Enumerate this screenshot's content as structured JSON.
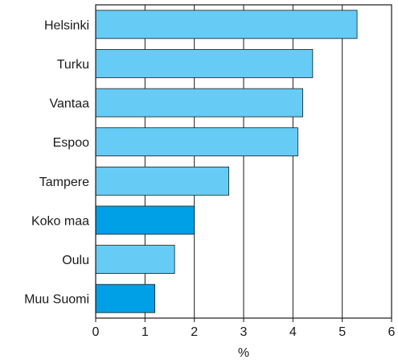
{
  "chart_data": {
    "type": "bar",
    "orientation": "horizontal",
    "categories": [
      "Helsinki",
      "Turku",
      "Vantaa",
      "Espoo",
      "Tampere",
      "Koko maa",
      "Oulu",
      "Muu Suomi"
    ],
    "values": [
      5.3,
      4.4,
      4.2,
      4.1,
      2.7,
      2.0,
      1.6,
      1.2
    ],
    "highlighted": [
      "Koko maa",
      "Muu Suomi"
    ],
    "colors": {
      "default": "#66ccf5",
      "highlight": "#00a0e6"
    },
    "xlabel": "%",
    "ylabel": "",
    "xlim": [
      0,
      6
    ],
    "xticks": [
      "0",
      "1",
      "2",
      "3",
      "4",
      "5",
      "6"
    ],
    "grid": true
  }
}
